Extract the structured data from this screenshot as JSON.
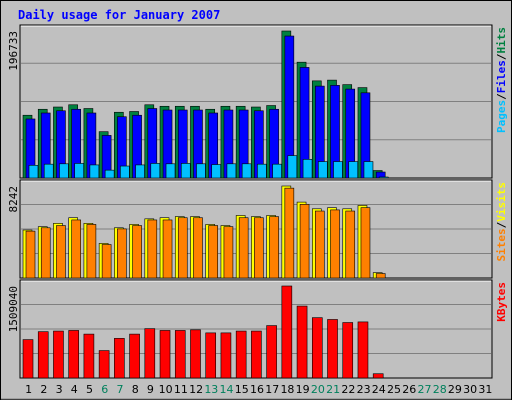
{
  "chart_data": {
    "type": "bar",
    "title": "Daily usage for January 2007",
    "categories": [
      "1",
      "2",
      "3",
      "4",
      "5",
      "6",
      "7",
      "8",
      "9",
      "10",
      "11",
      "12",
      "13",
      "14",
      "15",
      "16",
      "17",
      "18",
      "19",
      "20",
      "21",
      "22",
      "23",
      "24",
      "25",
      "26",
      "27",
      "28",
      "29",
      "30",
      "31"
    ],
    "weekend_days": [
      6,
      7,
      13,
      14,
      20,
      21,
      27,
      28
    ],
    "panels": [
      {
        "id": "top",
        "y_tick_label": "196733",
        "ymax": 196733,
        "legend": [
          "Pages",
          "/",
          "Files",
          "/",
          "Hits"
        ],
        "series": [
          {
            "name": "Hits",
            "color": "#008040",
            "values": [
              84000,
              92000,
              95000,
              98000,
              93000,
              62000,
              88000,
              89000,
              98000,
              96000,
              96000,
              96000,
              92000,
              96000,
              96000,
              95000,
              97000,
              196733,
              155000,
              130000,
              131000,
              125000,
              121000,
              10000,
              0,
              0,
              0,
              0,
              0,
              0,
              0
            ]
          },
          {
            "name": "Files",
            "color": "#0000ff",
            "values": [
              79000,
              87000,
              90000,
              92000,
              87000,
              57000,
              82000,
              84000,
              93000,
              91000,
              91000,
              91000,
              87000,
              91000,
              91000,
              90000,
              92000,
              190000,
              148000,
              123000,
              124000,
              119000,
              114000,
              8000,
              0,
              0,
              0,
              0,
              0,
              0,
              0
            ]
          },
          {
            "name": "Pages",
            "color": "#00c0ff",
            "values": [
              17000,
              18500,
              19000,
              19500,
              17500,
              10500,
              16000,
              17500,
              19500,
              19000,
              19500,
              19000,
              18000,
              19000,
              19000,
              18500,
              18500,
              30000,
              25000,
              22000,
              22000,
              22000,
              22000,
              500,
              0,
              0,
              0,
              0,
              0,
              0,
              0
            ]
          }
        ]
      },
      {
        "id": "middle",
        "y_tick_label": "8242",
        "ymax": 8242,
        "legend": [
          "Sites",
          "/",
          "Visits"
        ],
        "series": [
          {
            "name": "Visits",
            "color": "#ffff00",
            "values": [
              4300,
              4600,
              4900,
              5400,
              4900,
              3100,
              4500,
              4800,
              5300,
              5400,
              5500,
              5500,
              4800,
              4700,
              5600,
              5500,
              5600,
              8242,
              6800,
              6200,
              6300,
              6200,
              6500,
              480,
              0,
              0,
              0,
              0,
              0,
              0,
              0
            ]
          },
          {
            "name": "Sites",
            "color": "#ff8000",
            "values": [
              4200,
              4500,
              4700,
              5200,
              4800,
              3000,
              4400,
              4700,
              5200,
              5200,
              5400,
              5400,
              4700,
              4600,
              5400,
              5400,
              5500,
              8050,
              6600,
              6000,
              6100,
              6000,
              6300,
              400,
              0,
              0,
              0,
              0,
              0,
              0,
              0
            ]
          }
        ]
      },
      {
        "id": "bottom",
        "y_tick_label": "1509040",
        "ymax": 1509040,
        "legend": [
          "KBytes"
        ],
        "series": [
          {
            "name": "KBytes",
            "color": "#ff0000",
            "values": [
              630000,
              760000,
              770000,
              780000,
              720000,
              450000,
              650000,
              720000,
              810000,
              780000,
              780000,
              790000,
              740000,
              740000,
              770000,
              770000,
              860000,
              1509040,
              1180000,
              990000,
              960000,
              910000,
              920000,
              70000,
              0,
              0,
              0,
              0,
              0,
              0,
              0
            ]
          }
        ]
      }
    ]
  },
  "colors": {
    "background": "#c0c0c0",
    "plot_bg": "#c0c0c0",
    "grid": "#808080",
    "title": "#0000ff",
    "axis_text": "#000000",
    "weekend_text": "#00805c",
    "legend_sep": "#000000"
  }
}
